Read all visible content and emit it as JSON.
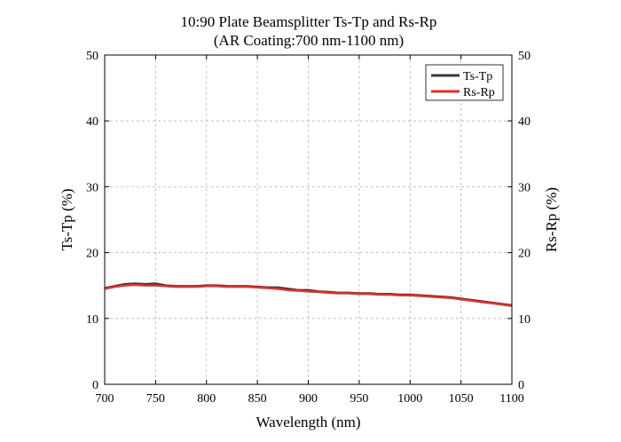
{
  "chart_data": {
    "type": "line",
    "title": "10:90 Plate Beamsplitter Ts-Tp and Rs-Rp",
    "subtitle": "(AR Coating:700 nm-1100 nm)",
    "xlabel": "Wavelength (nm)",
    "ylabel_left": "Ts-Tp (%)",
    "ylabel_right": "Rs-Rp (%)",
    "xlim": [
      700,
      1100
    ],
    "ylim": [
      0,
      50
    ],
    "x_ticks": [
      700,
      750,
      800,
      850,
      900,
      950,
      1000,
      1050,
      1100
    ],
    "y_ticks": [
      0,
      10,
      20,
      30,
      40,
      50
    ],
    "grid": true,
    "legend_position": "top-right",
    "series": [
      {
        "name": "Ts-Tp",
        "color": "#3a3a3a",
        "x": [
          700,
          710,
          720,
          730,
          740,
          750,
          760,
          770,
          780,
          790,
          800,
          810,
          820,
          830,
          840,
          850,
          860,
          870,
          880,
          890,
          900,
          910,
          920,
          930,
          940,
          950,
          960,
          970,
          980,
          990,
          1000,
          1010,
          1020,
          1030,
          1040,
          1050,
          1060,
          1070,
          1080,
          1090,
          1100
        ],
        "y": [
          14.6,
          14.9,
          15.2,
          15.3,
          15.2,
          15.3,
          15.0,
          14.9,
          14.9,
          14.9,
          15.0,
          15.0,
          14.9,
          14.9,
          14.9,
          14.8,
          14.7,
          14.7,
          14.5,
          14.3,
          14.3,
          14.1,
          14.0,
          13.9,
          13.9,
          13.8,
          13.8,
          13.7,
          13.7,
          13.6,
          13.6,
          13.5,
          13.4,
          13.3,
          13.2,
          13.0,
          12.8,
          12.6,
          12.4,
          12.2,
          12.0
        ]
      },
      {
        "name": "Rs-Rp",
        "color": "#e8302a",
        "x": [
          700,
          710,
          720,
          730,
          740,
          750,
          760,
          770,
          780,
          790,
          800,
          810,
          820,
          830,
          840,
          850,
          860,
          870,
          880,
          890,
          900,
          910,
          920,
          930,
          940,
          950,
          960,
          970,
          980,
          990,
          1000,
          1010,
          1020,
          1030,
          1040,
          1050,
          1060,
          1070,
          1080,
          1090,
          1100
        ],
        "y": [
          14.5,
          14.8,
          15.0,
          15.1,
          15.0,
          15.0,
          14.9,
          14.8,
          14.8,
          14.8,
          14.9,
          14.9,
          14.8,
          14.8,
          14.8,
          14.7,
          14.6,
          14.5,
          14.3,
          14.2,
          14.1,
          14.0,
          13.9,
          13.8,
          13.8,
          13.7,
          13.7,
          13.6,
          13.6,
          13.5,
          13.5,
          13.4,
          13.3,
          13.2,
          13.1,
          12.9,
          12.7,
          12.5,
          12.3,
          12.1,
          11.9
        ]
      }
    ]
  }
}
